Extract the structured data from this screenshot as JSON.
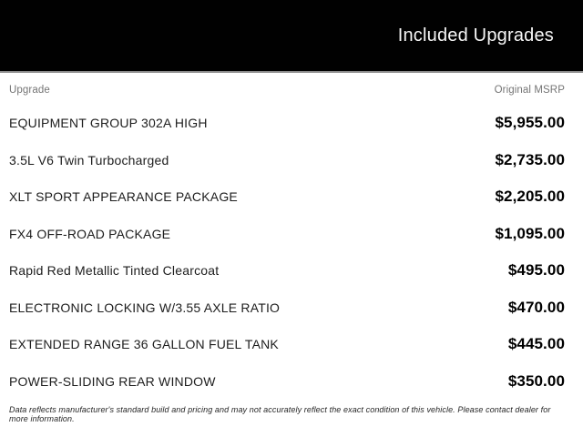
{
  "header": {
    "title": "Included Upgrades"
  },
  "table": {
    "columns": [
      "Upgrade",
      "Original MSRP"
    ],
    "rows": [
      {
        "upgrade": "EQUIPMENT GROUP 302A HIGH",
        "original_msrp": "$5,955.00"
      },
      {
        "upgrade": "3.5L V6 Twin Turbocharged",
        "original_msrp": "$2,735.00"
      },
      {
        "upgrade": "XLT SPORT APPEARANCE PACKAGE",
        "original_msrp": "$2,205.00"
      },
      {
        "upgrade": "FX4 OFF-ROAD PACKAGE",
        "original_msrp": "$1,095.00"
      },
      {
        "upgrade": "Rapid Red Metallic Tinted Clearcoat",
        "original_msrp": "$495.00"
      },
      {
        "upgrade": "ELECTRONIC LOCKING W/3.55 AXLE RATIO",
        "original_msrp": "$470.00"
      },
      {
        "upgrade": "EXTENDED RANGE 36 GALLON FUEL TANK",
        "original_msrp": "$445.00"
      },
      {
        "upgrade": "POWER-SLIDING REAR WINDOW",
        "original_msrp": "$350.00"
      }
    ]
  },
  "footer": {
    "disclaimer": "Data reflects manufacturer's standard build and pricing and may not accurately reflect the exact condition of this vehicle. Please contact dealer for more information."
  },
  "colors": {
    "header_background": "#010101",
    "header_title": "#f7f7f7",
    "header_divider": "#8c8c8c",
    "column_header_text": "#757575",
    "row_label_text": "#1d1d1d",
    "price_text": "#000000",
    "disclaimer_text": "#262626"
  }
}
